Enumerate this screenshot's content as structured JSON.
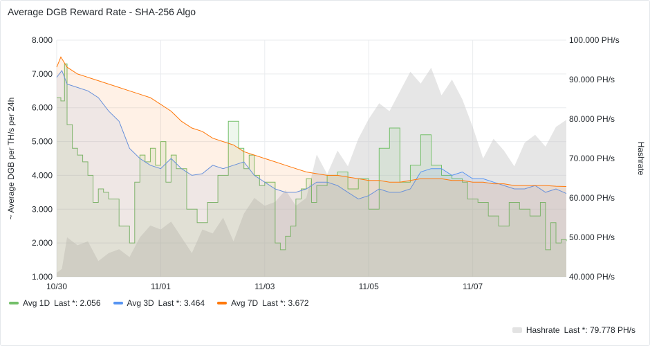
{
  "panel": {
    "title": "Average DGB Reward Rate - SHA-256 Algo"
  },
  "chart_data": {
    "type": "line",
    "title": "Average DGB Reward Rate - SHA-256 Algo",
    "x_ticks": [
      "10/30",
      "11/01",
      "11/03",
      "11/05",
      "11/07"
    ],
    "x_tick_days": [
      0,
      2,
      4,
      6,
      8
    ],
    "x_range_days": [
      0,
      9.8
    ],
    "ylabel": "~ Average DGB per TH/s per 24h",
    "ylim": [
      1.0,
      8.0
    ],
    "y_ticks": [
      "1.000",
      "2.000",
      "3.000",
      "4.000",
      "5.000",
      "6.000",
      "7.000",
      "8.000"
    ],
    "y2label": "Hashrate",
    "y2lim": [
      40.0,
      100.0
    ],
    "y2_ticks": [
      "40.000 PH/s",
      "50.000 PH/s",
      "60.000 PH/s",
      "70.000 PH/s",
      "80.000 PH/s",
      "90.000 PH/s",
      "100.000 PH/s"
    ],
    "grid": true,
    "series": [
      {
        "name": "Avg 1D",
        "color": "#73bf69",
        "axis": "left",
        "x": [
          0,
          0.08,
          0.15,
          0.2,
          0.3,
          0.4,
          0.5,
          0.6,
          0.7,
          0.8,
          0.9,
          1.0,
          1.2,
          1.4,
          1.5,
          1.6,
          1.7,
          1.8,
          1.9,
          2.0,
          2.1,
          2.2,
          2.3,
          2.5,
          2.7,
          2.9,
          3.1,
          3.3,
          3.5,
          3.6,
          3.7,
          3.8,
          3.9,
          4.0,
          4.2,
          4.3,
          4.4,
          4.5,
          4.6,
          4.7,
          4.8,
          4.9,
          5.0,
          5.2,
          5.4,
          5.6,
          5.8,
          6.0,
          6.2,
          6.4,
          6.6,
          6.8,
          7.0,
          7.2,
          7.4,
          7.6,
          7.8,
          7.9,
          8.1,
          8.3,
          8.5,
          8.7,
          8.9,
          9.1,
          9.3,
          9.4,
          9.5,
          9.6,
          9.7,
          9.8
        ],
        "values": [
          6.3,
          6.2,
          7.3,
          5.5,
          4.8,
          4.6,
          4.4,
          4.0,
          3.2,
          3.6,
          3.5,
          3.3,
          2.5,
          2.0,
          3.8,
          4.6,
          4.4,
          4.8,
          4.3,
          5.0,
          3.8,
          4.6,
          4.2,
          3.0,
          2.6,
          3.2,
          4.0,
          5.6,
          4.8,
          4.2,
          4.6,
          4.0,
          3.7,
          3.8,
          2.0,
          1.8,
          2.2,
          2.5,
          3.3,
          3.6,
          3.9,
          3.2,
          3.7,
          4.0,
          4.1,
          3.6,
          3.9,
          3.0,
          4.8,
          5.4,
          3.8,
          4.3,
          5.2,
          4.3,
          4.0,
          3.9,
          3.8,
          3.3,
          3.2,
          2.8,
          2.5,
          3.2,
          3.0,
          2.8,
          3.2,
          1.8,
          2.6,
          2.0,
          2.1,
          2.056
        ]
      },
      {
        "name": "Avg 3D",
        "color": "#5794f2",
        "axis": "left",
        "x": [
          0,
          0.1,
          0.2,
          0.4,
          0.6,
          0.8,
          1.0,
          1.2,
          1.4,
          1.6,
          1.8,
          2.0,
          2.2,
          2.4,
          2.6,
          2.8,
          3.0,
          3.2,
          3.4,
          3.6,
          3.8,
          4.0,
          4.2,
          4.4,
          4.6,
          4.8,
          5.0,
          5.2,
          5.4,
          5.6,
          5.8,
          6.0,
          6.2,
          6.4,
          6.6,
          6.8,
          7.0,
          7.2,
          7.4,
          7.6,
          7.8,
          8.0,
          8.2,
          8.4,
          8.6,
          8.8,
          9.0,
          9.2,
          9.4,
          9.6,
          9.8
        ],
        "values": [
          6.9,
          7.1,
          6.7,
          6.6,
          6.5,
          6.3,
          5.9,
          5.6,
          4.8,
          4.5,
          4.3,
          4.2,
          4.5,
          4.2,
          4.0,
          4.05,
          4.3,
          4.2,
          4.3,
          4.4,
          4.0,
          3.8,
          3.6,
          3.5,
          3.5,
          3.6,
          3.8,
          3.8,
          3.7,
          3.5,
          3.3,
          3.4,
          3.6,
          3.5,
          3.5,
          3.6,
          4.1,
          4.2,
          4.2,
          4.0,
          4.1,
          3.9,
          3.9,
          3.8,
          3.7,
          3.6,
          3.6,
          3.7,
          3.5,
          3.6,
          3.464
        ]
      },
      {
        "name": "Avg 7D",
        "color": "#ff780a",
        "axis": "left",
        "x": [
          0,
          0.08,
          0.2,
          0.4,
          0.6,
          0.8,
          1.0,
          1.2,
          1.4,
          1.6,
          1.8,
          2.0,
          2.2,
          2.4,
          2.6,
          2.8,
          3.0,
          3.2,
          3.4,
          3.6,
          3.8,
          4.0,
          4.2,
          4.4,
          4.6,
          4.8,
          5.0,
          5.2,
          5.4,
          5.6,
          5.8,
          6.0,
          6.2,
          6.4,
          6.6,
          6.8,
          7.0,
          7.2,
          7.4,
          7.6,
          7.8,
          8.0,
          8.2,
          8.4,
          8.6,
          8.8,
          9.0,
          9.2,
          9.4,
          9.6,
          9.8
        ],
        "values": [
          7.2,
          7.5,
          7.2,
          7.0,
          6.9,
          6.8,
          6.7,
          6.6,
          6.5,
          6.4,
          6.3,
          6.1,
          5.9,
          5.6,
          5.4,
          5.3,
          5.1,
          5.0,
          4.9,
          4.7,
          4.6,
          4.5,
          4.4,
          4.3,
          4.2,
          4.1,
          4.05,
          4.0,
          4.0,
          3.95,
          3.9,
          3.85,
          3.85,
          3.8,
          3.8,
          3.85,
          3.9,
          3.9,
          3.9,
          3.85,
          3.85,
          3.8,
          3.8,
          3.75,
          3.75,
          3.7,
          3.7,
          3.7,
          3.7,
          3.68,
          3.672
        ]
      },
      {
        "name": "Hashrate",
        "color": "#cfcfcf",
        "axis": "right",
        "x": [
          0,
          0.1,
          0.2,
          0.4,
          0.6,
          0.8,
          1.0,
          1.2,
          1.4,
          1.6,
          1.8,
          2.0,
          2.2,
          2.4,
          2.6,
          2.8,
          3.0,
          3.2,
          3.4,
          3.6,
          3.8,
          4.0,
          4.2,
          4.4,
          4.6,
          4.8,
          5.0,
          5.2,
          5.4,
          5.6,
          5.8,
          6.0,
          6.2,
          6.4,
          6.6,
          6.8,
          7.0,
          7.2,
          7.4,
          7.6,
          7.8,
          8.0,
          8.2,
          8.4,
          8.6,
          8.8,
          9.0,
          9.2,
          9.4,
          9.6,
          9.8
        ],
        "values": [
          41.0,
          42.0,
          50.0,
          48.0,
          49.0,
          44.0,
          46.0,
          47.0,
          45.0,
          50.0,
          53.0,
          52.0,
          54.0,
          50.0,
          46.0,
          52.0,
          51.0,
          55.0,
          49.0,
          56.0,
          60.0,
          58.0,
          59.0,
          62.0,
          58.0,
          60.0,
          71.0,
          66.0,
          72.0,
          68.0,
          75.0,
          80.0,
          84.0,
          82.0,
          87.0,
          92.0,
          89.0,
          93.0,
          86.0,
          90.0,
          85.0,
          78.0,
          70.0,
          75.0,
          72.0,
          68.0,
          74.0,
          76.0,
          73.0,
          78.0,
          79.778
        ]
      }
    ]
  },
  "legend": {
    "items": [
      {
        "name": "Avg 1D",
        "last": "Last *: 2.056",
        "color": "#73bf69"
      },
      {
        "name": "Avg 3D",
        "last": "Last *: 3.464",
        "color": "#5794f2"
      },
      {
        "name": "Avg 7D",
        "last": "Last *: 3.672",
        "color": "#ff780a"
      }
    ],
    "hashrate": {
      "name": "Hashrate",
      "last": "Last *: 79.778 PH/s",
      "color": "#e3e3e3"
    }
  }
}
